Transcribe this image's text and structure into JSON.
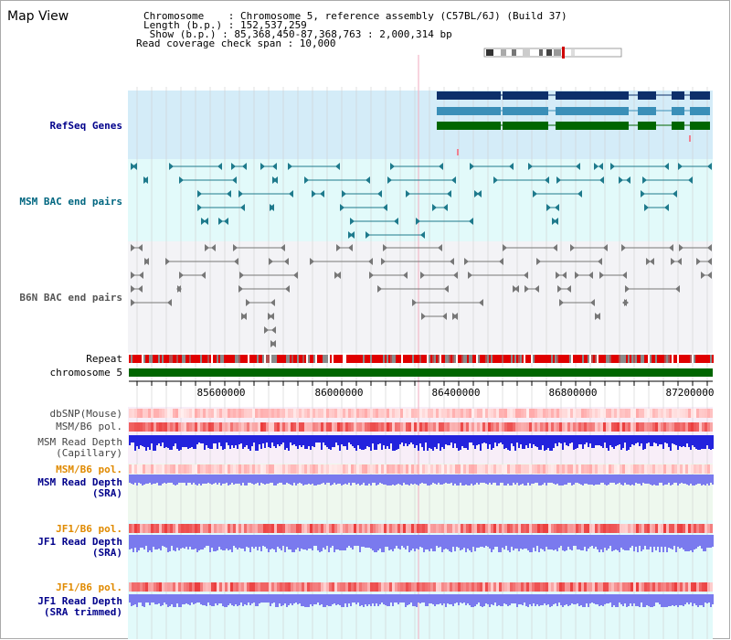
{
  "title": "Map View",
  "info": {
    "chromosome": "Chromosome    : Chromosome 5, reference assembly (C57BL/6J) (Build 37)",
    "length": "Length (b.p.) : 152,537,259",
    "show": " Show (b.p.) : 85,368,450-87,368,763 : 2,000,314 bp",
    "coverage": "Read coverage check span : 10,000"
  },
  "tracks": {
    "refseq": "RefSeq Genes",
    "msm_bac": "MSM BAC end pairs",
    "b6n_bac": "B6N BAC end pairs",
    "repeat": "Repeat",
    "chromosome": "chromosome 5",
    "dbsnp": "dbSNP(Mouse)",
    "msm_b6_pol": "MSM/B6 pol.",
    "msm_depth_cap_1": "MSM Read Depth",
    "msm_depth_cap_2": "(Capillary)",
    "msm_b6_pol2": "MSM/B6 pol.",
    "msm_depth_sra_1": "MSM Read Depth",
    "msm_depth_sra_2": "(SRA)",
    "jf1_pol_1": "JF1/B6 pol.",
    "jf1_depth_sra_1": "JF1 Read Depth",
    "jf1_depth_sra_2": "(SRA)",
    "jf1_pol_2": "JF1/B6 pol.",
    "jf1_depth_trim_1": "JF1 Read Depth",
    "jf1_depth_trim_2": "(SRA trimmed)"
  },
  "axis_ticks": [
    "85600000",
    "86000000",
    "86400000",
    "86800000",
    "87200000"
  ],
  "colors": {
    "refseq_bg": "#d4ecf8",
    "msm_bac_bg": "#e2fafa",
    "b6n_bac_bg": "#f0f0f4",
    "gene_dark": "#0d2f6a",
    "gene_mid": "#3a8fb8",
    "gene_green": "#006600",
    "msm_bac": "#1e7a8c",
    "b6n_bac": "#777777",
    "label_blue": "#00008b",
    "label_teal": "#006680",
    "label_orange": "#e08a00",
    "chromosome_green": "#006600",
    "depth_blue": "#2323dd",
    "depth_light": "#7a7aee"
  }
}
